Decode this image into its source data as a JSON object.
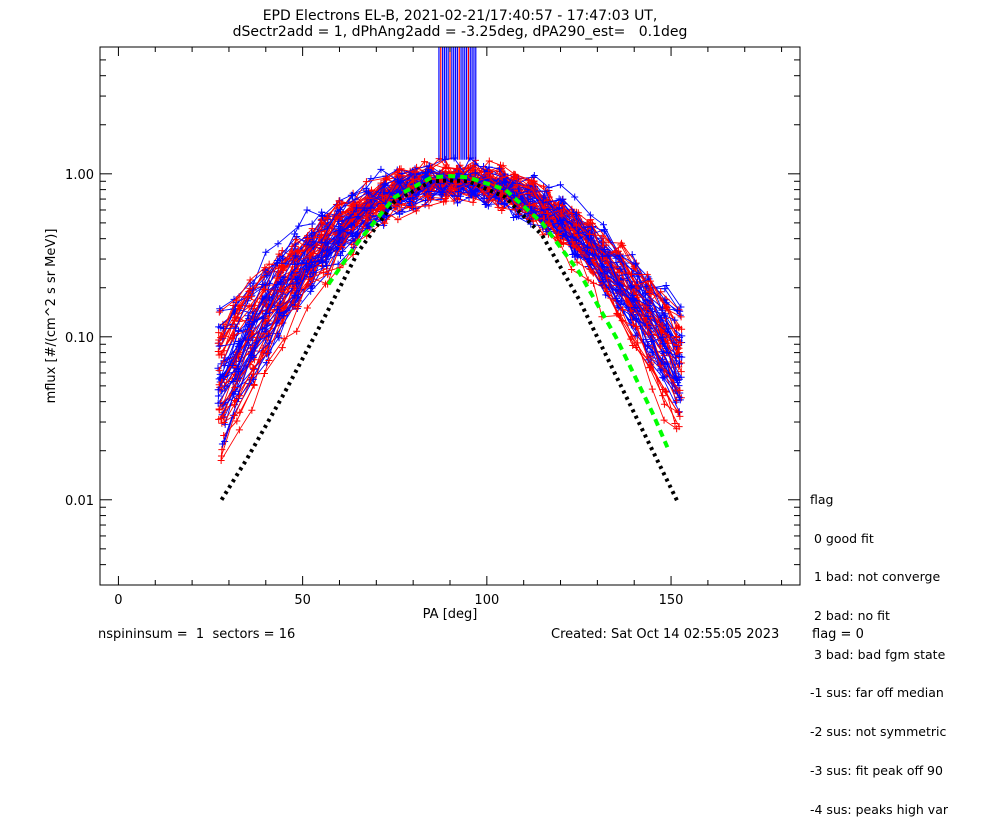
{
  "chart_data": {
    "type": "line",
    "title": "EPD Electrons EL-B, 2021-02-21/17:40:57 - 17:47:03 UT,",
    "subtitle": "dSectr2add = 1, dPhAng2add = -3.25deg, dPA290_est=   0.1deg",
    "xlabel": "PA [deg]",
    "ylabel": "mflux [#/(cm^2 s sr MeV)]",
    "xlim": [
      -5,
      185
    ],
    "ylim": [
      0.003,
      6.0
    ],
    "yscale": "log",
    "x_ticks": [
      0,
      50,
      100,
      150
    ],
    "x_tick_labels": [
      "0",
      "50",
      "100",
      "150"
    ],
    "y_ticks": [
      0.01,
      0.1,
      1.0
    ],
    "y_tick_labels": [
      "0.01",
      "0.10",
      "1.00"
    ],
    "grid": false,
    "series_colors": {
      "red": "#ff0000",
      "blue": "#0000ff",
      "median": "#000000",
      "fit": "#00ff00"
    },
    "median_curve": {
      "style": "dotted",
      "x": [
        28,
        35,
        45,
        55,
        65,
        75,
        85,
        90,
        95,
        105,
        115,
        125,
        135,
        145,
        152
      ],
      "y": [
        0.01,
        0.018,
        0.045,
        0.12,
        0.33,
        0.68,
        0.9,
        0.91,
        0.9,
        0.72,
        0.42,
        0.17,
        0.058,
        0.02,
        0.0095
      ]
    },
    "fit_curve": {
      "style": "dashed",
      "x": [
        57,
        65,
        75,
        85,
        90,
        95,
        105,
        115,
        125,
        135,
        145,
        149
      ],
      "y": [
        0.21,
        0.38,
        0.72,
        0.95,
        0.97,
        0.95,
        0.8,
        0.5,
        0.25,
        0.1,
        0.034,
        0.021
      ]
    },
    "spike_region": {
      "x_range": [
        87,
        97
      ],
      "y_floor": 1.22,
      "note": "values above plot range"
    }
  },
  "legend": {
    "heading": "flag",
    "items": [
      " 0 good fit",
      " 1 bad: not converge",
      " 2 bad: no fit",
      " 3 bad: bad fgm state",
      "-1 sus: far off median",
      "-2 sus: not symmetric",
      "-3 sus: fit peak off 90",
      "-4 sus: peaks high var"
    ]
  },
  "footer": {
    "left": "nspininsum =  1  sectors = 16",
    "created": "Created: Sat Oct 14 02:55:05 2023",
    "flag": "flag = 0"
  }
}
